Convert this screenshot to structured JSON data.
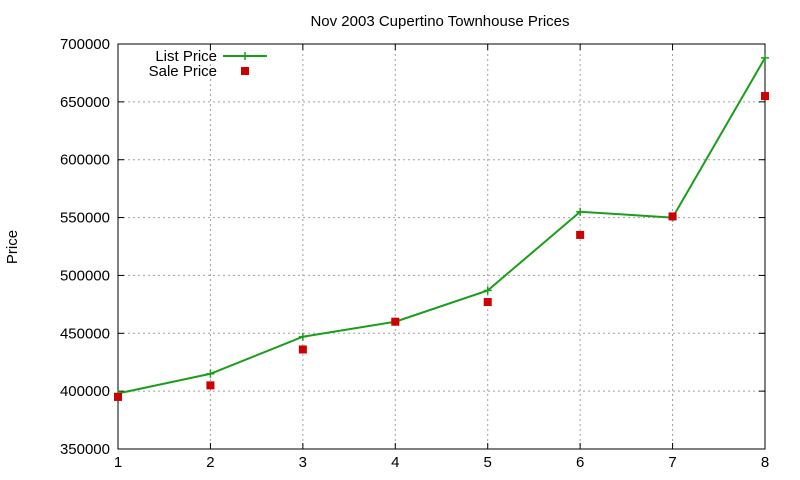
{
  "chart_data": {
    "type": "line",
    "title": "Nov 2003 Cupertino Townhouse Prices",
    "xlabel": "",
    "ylabel": "Price",
    "xlim": [
      1,
      8
    ],
    "ylim": [
      350000,
      700000
    ],
    "xticks": [
      1,
      2,
      3,
      4,
      5,
      6,
      7,
      8
    ],
    "yticks": [
      350000,
      400000,
      450000,
      500000,
      550000,
      600000,
      650000,
      700000
    ],
    "grid": true,
    "legend_position": "top-left",
    "series": [
      {
        "name": "List Price",
        "kind": "line",
        "marker": "plus",
        "color": "#1a9e1a",
        "x": [
          1,
          2,
          3,
          4,
          5,
          6,
          7,
          8
        ],
        "y": [
          398000,
          415000,
          447000,
          460000,
          487000,
          555000,
          550000,
          688000
        ]
      },
      {
        "name": "Sale Price",
        "kind": "scatter",
        "marker": "square",
        "color": "#cc0000",
        "x": [
          1,
          2,
          3,
          4,
          5,
          6,
          7,
          8
        ],
        "y": [
          395000,
          405000,
          436000,
          460000,
          477000,
          535000,
          551000,
          655000
        ]
      }
    ]
  }
}
